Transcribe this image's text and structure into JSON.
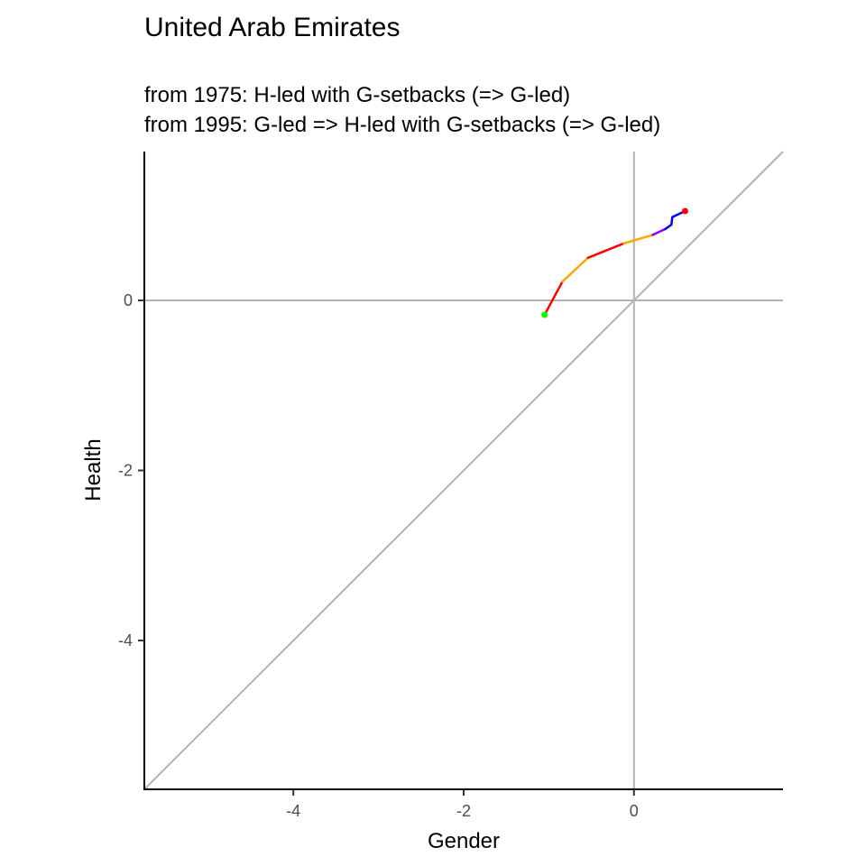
{
  "chart_data": {
    "type": "line",
    "title": "United Arab Emirates",
    "subtitle_lines": [
      "from 1975:  H-led with G-setbacks (=> G-led)",
      "from 1995:  G-led => H-led with G-setbacks (=> G-led)"
    ],
    "xlabel": "Gender",
    "ylabel": "Health",
    "xlim": [
      -5.75,
      1.75
    ],
    "ylim": [
      -5.75,
      1.75
    ],
    "x_ticks": [
      -4,
      -2,
      0
    ],
    "y_ticks": [
      0,
      -2,
      -4
    ],
    "reference_lines": {
      "horizontal_at_zero": true,
      "vertical_at_zero": true,
      "diagonal_y_equals_x": true,
      "color": "#b3b3b3"
    },
    "grid": false,
    "path_segments": [
      {
        "color": "#ff0000",
        "points": [
          [
            -1.05,
            -0.17
          ],
          [
            -0.84,
            0.22
          ]
        ]
      },
      {
        "color": "#ffa500",
        "points": [
          [
            -0.84,
            0.22
          ],
          [
            -0.54,
            0.5
          ]
        ]
      },
      {
        "color": "#ff0000",
        "points": [
          [
            -0.54,
            0.5
          ],
          [
            -0.12,
            0.67
          ]
        ]
      },
      {
        "color": "#ffa500",
        "points": [
          [
            -0.12,
            0.67
          ],
          [
            0.22,
            0.77
          ]
        ]
      },
      {
        "color": "#8000ff",
        "points": [
          [
            0.22,
            0.77
          ],
          [
            0.37,
            0.84
          ]
        ]
      },
      {
        "color": "#0000ff",
        "points": [
          [
            0.37,
            0.84
          ],
          [
            0.44,
            0.89
          ],
          [
            0.45,
            0.98
          ],
          [
            0.58,
            1.04
          ]
        ]
      }
    ],
    "start_point": {
      "x": -1.05,
      "y": -0.17,
      "color": "#00ff00"
    },
    "end_point": {
      "x": 0.6,
      "y": 1.05,
      "color": "#ff0000"
    }
  }
}
